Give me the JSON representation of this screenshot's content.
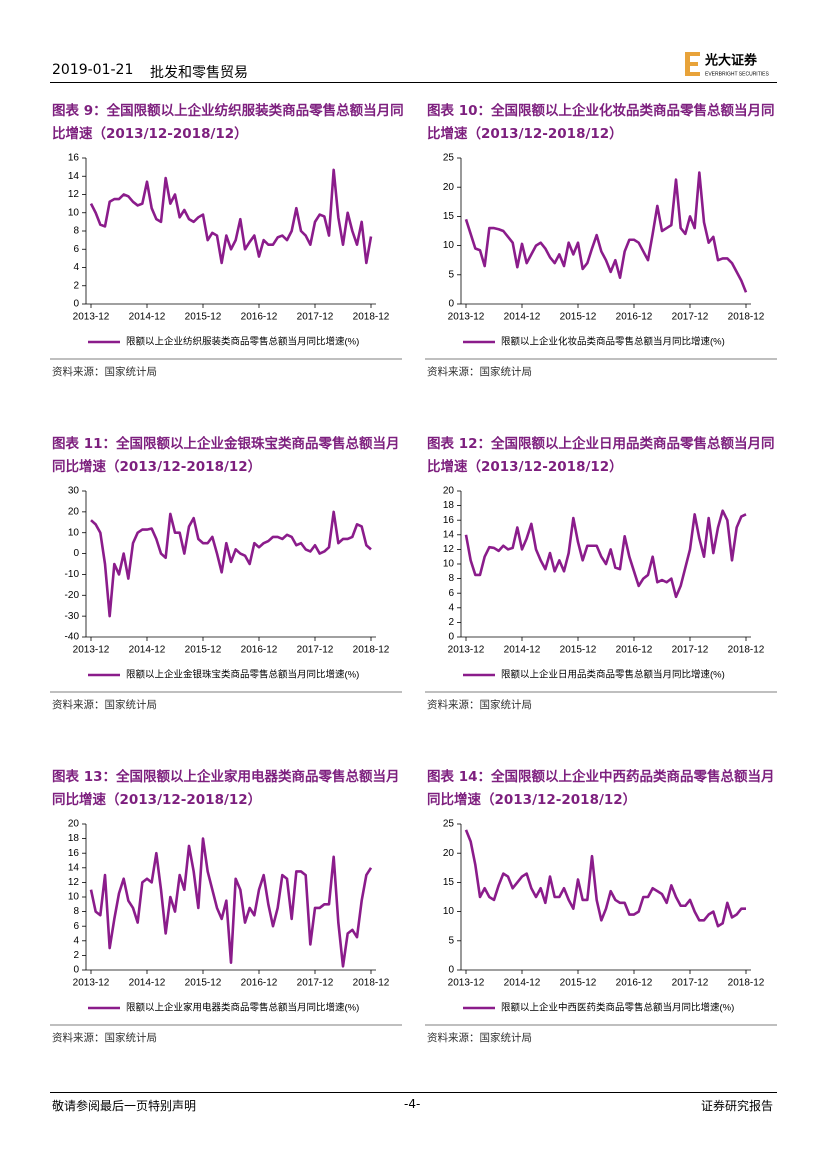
{
  "header": {
    "date": "2019-01-21",
    "section": "批发和零售贸易",
    "logo_cn": "光大证券",
    "logo_en": "EVERBRIGHT SECURITIES"
  },
  "chart_data": [
    {
      "type": "line",
      "title": "图表 9：全国限额以上企业纺织服装类商品零售总额当月同比增速（2013/12-2018/12）",
      "categories": [
        "2013-12",
        null,
        null,
        null,
        null,
        null,
        null,
        null,
        null,
        null,
        null,
        null,
        "2014-12",
        null,
        null,
        null,
        null,
        null,
        null,
        null,
        null,
        null,
        null,
        null,
        "2015-12",
        null,
        null,
        null,
        null,
        null,
        null,
        null,
        null,
        null,
        null,
        null,
        "2016-12",
        null,
        null,
        null,
        null,
        null,
        null,
        null,
        null,
        null,
        null,
        null,
        "2017-12",
        null,
        null,
        null,
        null,
        null,
        null,
        null,
        null,
        null,
        null,
        null,
        "2018-12"
      ],
      "series": [
        {
          "name": "限额以上企业纺织服装类商品零售总额当月同比增速(%)",
          "color": "#8b1c8b",
          "values": [
            11,
            10,
            8.7,
            8.5,
            11.2,
            11.5,
            11.5,
            12,
            11.8,
            11.2,
            10.8,
            11,
            13.4,
            10.5,
            9.3,
            9,
            13.8,
            11,
            12,
            9.5,
            10.3,
            9.3,
            9,
            9.5,
            9.8,
            7,
            7.8,
            7.5,
            4.5,
            7.5,
            6,
            7,
            9.3,
            6,
            6.8,
            7.5,
            5.2,
            7,
            6.5,
            6.5,
            7.3,
            7.5,
            7,
            8,
            10.5,
            8,
            7.5,
            6.5,
            9,
            9.8,
            9.6,
            7.5,
            14.7,
            9.5,
            6.5,
            10,
            8,
            6.5,
            9,
            4.5,
            7.4
          ]
        }
      ],
      "ylim": [
        0,
        16
      ],
      "yticks": [
        0,
        2,
        4,
        6,
        8,
        10,
        12,
        14,
        16
      ],
      "source": "资料来源：国家统计局"
    },
    {
      "type": "line",
      "title": "图表 10：全国限额以上企业化妆品类商品零售总额当月同比增速（2013/12-2018/12）",
      "categories": [
        "2013-12",
        null,
        null,
        null,
        null,
        null,
        null,
        null,
        null,
        null,
        null,
        null,
        "2014-12",
        null,
        null,
        null,
        null,
        null,
        null,
        null,
        null,
        null,
        null,
        null,
        "2015-12",
        null,
        null,
        null,
        null,
        null,
        null,
        null,
        null,
        null,
        null,
        null,
        "2016-12",
        null,
        null,
        null,
        null,
        null,
        null,
        null,
        null,
        null,
        null,
        null,
        "2017-12",
        null,
        null,
        null,
        null,
        null,
        null,
        null,
        null,
        null,
        null,
        null,
        "2018-12"
      ],
      "series": [
        {
          "name": "限额以上企业化妆品类商品零售总额当月同比增速(%)",
          "color": "#8b1c8b",
          "values": [
            14.5,
            12,
            9.5,
            9.2,
            6.5,
            13,
            13,
            12.8,
            12.5,
            11.5,
            10.5,
            6.3,
            10.3,
            7,
            8.5,
            10,
            10.5,
            9.5,
            8,
            7,
            8.5,
            6.5,
            10.5,
            8.5,
            10.5,
            6,
            7,
            9.5,
            11.8,
            9,
            7.5,
            5.5,
            7.5,
            4.5,
            9,
            11,
            11,
            10.5,
            9,
            7.5,
            12,
            16.8,
            12.5,
            13,
            13.5,
            21.3,
            13,
            12,
            15,
            13,
            22.5,
            14,
            10.5,
            11.5,
            7.5,
            7.8,
            7.8,
            7,
            5.5,
            4,
            2
          ]
        }
      ],
      "ylim": [
        0,
        25
      ],
      "yticks": [
        0,
        5,
        10,
        15,
        20,
        25
      ],
      "source": "资料来源：国家统计局"
    },
    {
      "type": "line",
      "title": "图表 11：全国限额以上企业金银珠宝类商品零售总额当月同比增速（2013/12-2018/12）",
      "categories": [
        "2013-12",
        null,
        null,
        null,
        null,
        null,
        null,
        null,
        null,
        null,
        null,
        null,
        "2014-12",
        null,
        null,
        null,
        null,
        null,
        null,
        null,
        null,
        null,
        null,
        null,
        "2015-12",
        null,
        null,
        null,
        null,
        null,
        null,
        null,
        null,
        null,
        null,
        null,
        "2016-12",
        null,
        null,
        null,
        null,
        null,
        null,
        null,
        null,
        null,
        null,
        null,
        "2017-12",
        null,
        null,
        null,
        null,
        null,
        null,
        null,
        null,
        null,
        null,
        null,
        "2018-12"
      ],
      "series": [
        {
          "name": "限额以上企业金银珠宝类商品零售总额当月同比增速(%)",
          "color": "#8b1c8b",
          "values": [
            16,
            14,
            10,
            -5,
            -30,
            -5,
            -10,
            0,
            -12,
            5,
            10,
            11.5,
            11.5,
            12,
            7,
            0,
            -2,
            19,
            10,
            10,
            0,
            13,
            17,
            7,
            5,
            5,
            8,
            0,
            -9,
            5,
            -4,
            2,
            0,
            -1,
            -5,
            5,
            3,
            5,
            6,
            8,
            8,
            7,
            9,
            8,
            4,
            5,
            2,
            1,
            4,
            0,
            1,
            3,
            20,
            5,
            7,
            7,
            8,
            14,
            13,
            4,
            2
          ]
        }
      ],
      "ylim": [
        -40,
        30
      ],
      "yticks": [
        -40,
        -30,
        -20,
        -10,
        0,
        10,
        20,
        30
      ],
      "source": "资料来源：国家统计局"
    },
    {
      "type": "line",
      "title": "图表 12：全国限额以上企业日用品类商品零售总额当月同比增速（2013/12-2018/12）",
      "categories": [
        "2013-12",
        null,
        null,
        null,
        null,
        null,
        null,
        null,
        null,
        null,
        null,
        null,
        "2014-12",
        null,
        null,
        null,
        null,
        null,
        null,
        null,
        null,
        null,
        null,
        null,
        "2015-12",
        null,
        null,
        null,
        null,
        null,
        null,
        null,
        null,
        null,
        null,
        null,
        "2016-12",
        null,
        null,
        null,
        null,
        null,
        null,
        null,
        null,
        null,
        null,
        null,
        "2017-12",
        null,
        null,
        null,
        null,
        null,
        null,
        null,
        null,
        null,
        null,
        null,
        "2018-12"
      ],
      "series": [
        {
          "name": "限额以上企业日用品类商品零售总额当月同比增速(%)",
          "color": "#8b1c8b",
          "values": [
            14,
            10.5,
            8.5,
            8.5,
            11,
            12.3,
            12.2,
            11.8,
            12.5,
            12,
            12.2,
            15,
            12,
            13.5,
            15.5,
            12,
            10.5,
            9.3,
            11.5,
            9,
            10.5,
            9,
            11.5,
            16.3,
            13,
            10.5,
            12.5,
            12.5,
            12.5,
            11,
            10,
            12,
            9.5,
            9.3,
            13.8,
            11,
            9,
            7,
            8,
            8.5,
            11,
            7.5,
            7.8,
            7.5,
            8,
            5.5,
            7,
            9.5,
            12,
            16.8,
            13.5,
            11,
            16.3,
            11.5,
            15,
            17.3,
            16,
            10.5,
            15,
            16.5,
            16.8
          ]
        }
      ],
      "ylim": [
        0,
        20
      ],
      "yticks": [
        0,
        2,
        4,
        6,
        8,
        10,
        12,
        14,
        16,
        18,
        20
      ],
      "source": "资料来源：国家统计局"
    },
    {
      "type": "line",
      "title": "图表 13：全国限额以上企业家用电器类商品零售总额当月同比增速（2013/12-2018/12）",
      "categories": [
        "2013-12",
        null,
        null,
        null,
        null,
        null,
        null,
        null,
        null,
        null,
        null,
        null,
        "2014-12",
        null,
        null,
        null,
        null,
        null,
        null,
        null,
        null,
        null,
        null,
        null,
        "2015-12",
        null,
        null,
        null,
        null,
        null,
        null,
        null,
        null,
        null,
        null,
        null,
        "2016-12",
        null,
        null,
        null,
        null,
        null,
        null,
        null,
        null,
        null,
        null,
        null,
        "2017-12",
        null,
        null,
        null,
        null,
        null,
        null,
        null,
        null,
        null,
        null,
        null,
        "2018-12"
      ],
      "series": [
        {
          "name": "限额以上企业家用电器类商品零售总额当月同比增速(%)",
          "color": "#8b1c8b",
          "values": [
            11,
            8,
            7.5,
            13,
            3,
            7,
            10.5,
            12.5,
            9.5,
            8.5,
            6.5,
            12,
            12.5,
            12,
            16,
            11,
            5,
            10,
            8,
            13,
            11,
            17,
            13.5,
            8.5,
            18,
            13.5,
            11,
            8.5,
            7,
            9.5,
            1,
            12.5,
            11,
            6.5,
            8.5,
            7.5,
            11,
            13,
            9,
            6,
            8.5,
            13,
            12.5,
            7,
            13.5,
            13.5,
            13,
            3.5,
            8.5,
            8.5,
            9,
            9,
            15.5,
            6.5,
            0.5,
            5,
            5.5,
            4.5,
            9.5,
            13,
            14
          ]
        }
      ],
      "ylim": [
        0,
        20
      ],
      "yticks": [
        0,
        2,
        4,
        6,
        8,
        10,
        12,
        14,
        16,
        18,
        20
      ],
      "source": "资料来源：国家统计局"
    },
    {
      "type": "line",
      "title": "图表 14：全国限额以上企业中西药品类商品零售总额当月同比增速（2013/12-2018/12）",
      "categories": [
        "2013-12",
        null,
        null,
        null,
        null,
        null,
        null,
        null,
        null,
        null,
        null,
        null,
        "2014-12",
        null,
        null,
        null,
        null,
        null,
        null,
        null,
        null,
        null,
        null,
        null,
        "2015-12",
        null,
        null,
        null,
        null,
        null,
        null,
        null,
        null,
        null,
        null,
        null,
        "2016-12",
        null,
        null,
        null,
        null,
        null,
        null,
        null,
        null,
        null,
        null,
        null,
        "2017-12",
        null,
        null,
        null,
        null,
        null,
        null,
        null,
        null,
        null,
        null,
        null,
        "2018-12"
      ],
      "series": [
        {
          "name": "限额以上企业中西医药类商品零售总额当月同比增速(%)",
          "color": "#8b1c8b",
          "values": [
            24,
            22,
            18,
            12.5,
            14,
            12.5,
            12,
            14.5,
            16.5,
            16,
            14,
            15,
            16,
            16.5,
            14,
            12.5,
            14,
            11.5,
            16,
            12.5,
            12.5,
            14,
            12,
            10.5,
            15.5,
            12,
            12,
            19.5,
            12,
            8.5,
            10.5,
            13.5,
            12,
            11.5,
            11.5,
            9.5,
            9.5,
            10,
            12.5,
            12.5,
            14,
            13.5,
            13,
            11.5,
            14.5,
            12.5,
            11,
            11,
            12,
            10,
            8.5,
            8.5,
            9.5,
            10,
            7.5,
            8,
            11.5,
            9,
            9.5,
            10.5,
            10.5
          ]
        }
      ],
      "ylim": [
        0,
        25
      ],
      "yticks": [
        0,
        5,
        10,
        15,
        20,
        25
      ],
      "source": "资料来源：国家统计局"
    }
  ],
  "footer": {
    "disclaimer": "敬请参阅最后一页特别声明",
    "page": "-4-",
    "report_type": "证券研究报告"
  }
}
